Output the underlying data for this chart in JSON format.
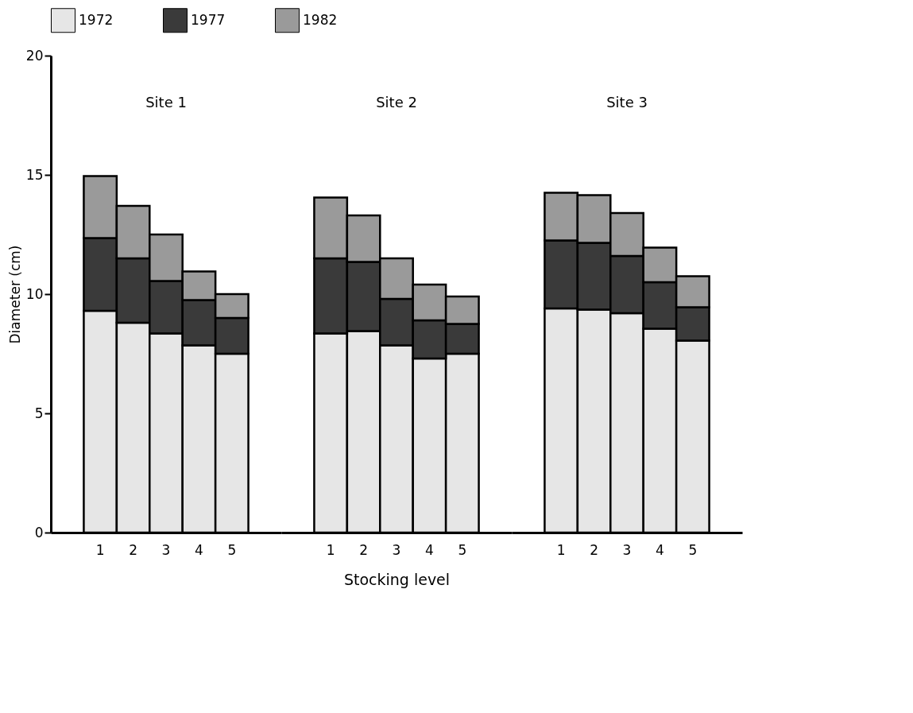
{
  "chart_data": [
    {
      "type": "bar",
      "stacked": true,
      "categories": [
        "1",
        "2",
        "3",
        "4",
        "5"
      ],
      "ylabel": "Diameter  (cm)",
      "ylim": [
        0,
        20
      ],
      "yticks": [
        0,
        5,
        10,
        15,
        20
      ],
      "grid": false,
      "legend": "top",
      "annotations": [
        "Site  1"
      ],
      "series": [
        {
          "name": "1972",
          "color": "#e6e6e6",
          "values": [
            9.3,
            8.8,
            8.35,
            7.85,
            7.5
          ]
        },
        {
          "name": "1977",
          "color": "#3a3a3a",
          "values": [
            3.05,
            2.7,
            2.2,
            1.9,
            1.5
          ]
        },
        {
          "name": "1982",
          "color": "#9a9a9a",
          "values": [
            2.6,
            2.2,
            1.95,
            1.2,
            1.0
          ]
        }
      ]
    },
    {
      "type": "bar",
      "stacked": true,
      "categories": [
        "1",
        "2",
        "3",
        "4",
        "5"
      ],
      "xlabel": "Stocking  level",
      "ylim": [
        0,
        20
      ],
      "tick_labels": "x",
      "grid": false,
      "legend": "top",
      "annotations": [
        "Site  2"
      ],
      "series": [
        {
          "name": "1972",
          "color": "#e6e6e6",
          "values": [
            8.35,
            8.45,
            7.85,
            7.3,
            7.5
          ]
        },
        {
          "name": "1977",
          "color": "#3a3a3a",
          "values": [
            3.15,
            2.9,
            1.95,
            1.6,
            1.25
          ]
        },
        {
          "name": "1982",
          "color": "#9a9a9a",
          "values": [
            2.55,
            1.95,
            1.7,
            1.5,
            1.15
          ]
        }
      ]
    },
    {
      "type": "bar",
      "stacked": true,
      "categories": [
        "1",
        "2",
        "3",
        "4",
        "5"
      ],
      "ylim": [
        0,
        20
      ],
      "tick_labels": "x",
      "grid": false,
      "legend": "top",
      "annotations": [
        "Site  3"
      ],
      "series": [
        {
          "name": "1972",
          "color": "#e6e6e6",
          "values": [
            9.4,
            9.35,
            9.2,
            8.55,
            8.05
          ]
        },
        {
          "name": "1977",
          "color": "#3a3a3a",
          "values": [
            2.85,
            2.8,
            2.4,
            1.95,
            1.4
          ]
        },
        {
          "name": "1982",
          "color": "#9a9a9a",
          "values": [
            2.0,
            2.0,
            1.8,
            1.45,
            1.3
          ]
        }
      ]
    }
  ]
}
